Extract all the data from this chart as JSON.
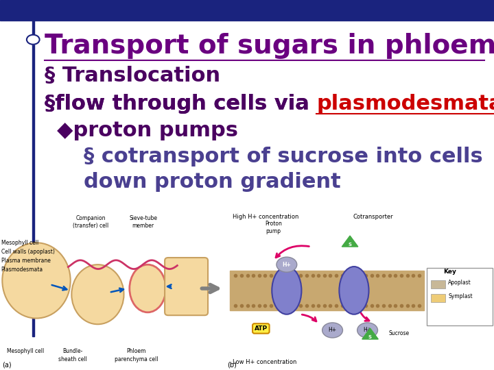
{
  "background_color": "#ffffff",
  "top_bar_color": "#1a237e",
  "top_bar_height": 0.055,
  "left_bar_color": "#1a237e",
  "title": "Transport of sugars in phloem",
  "title_color": "#6a0080",
  "title_fontsize": 28,
  "bullet1_text": "§ Translocation",
  "bullet1_color": "#4a0060",
  "bullet1_fontsize": 22,
  "bullet2_prefix": "§flow through cells via ",
  "bullet2_highlight": "plasmodesmata",
  "bullet2_color": "#4a0060",
  "bullet2_highlight_color": "#cc0000",
  "bullet2_fontsize": 22,
  "bullet3_marker": "◆",
  "bullet3_text": "proton pumps",
  "bullet3_color": "#4a0060",
  "bullet3_fontsize": 22,
  "bullet4_marker": "§",
  "bullet4_text": "cotransport of sucrose into cells",
  "bullet4_color": "#4a4090",
  "bullet4_fontsize": 22,
  "bullet5_text": "down proton gradient",
  "bullet5_color": "#4a4090",
  "bullet5_fontsize": 22,
  "cell_color": "#f5d9a0",
  "cell_edge": "#c8a060",
  "right_bg_color": "#e8d8b0",
  "label_fs": 5.5
}
